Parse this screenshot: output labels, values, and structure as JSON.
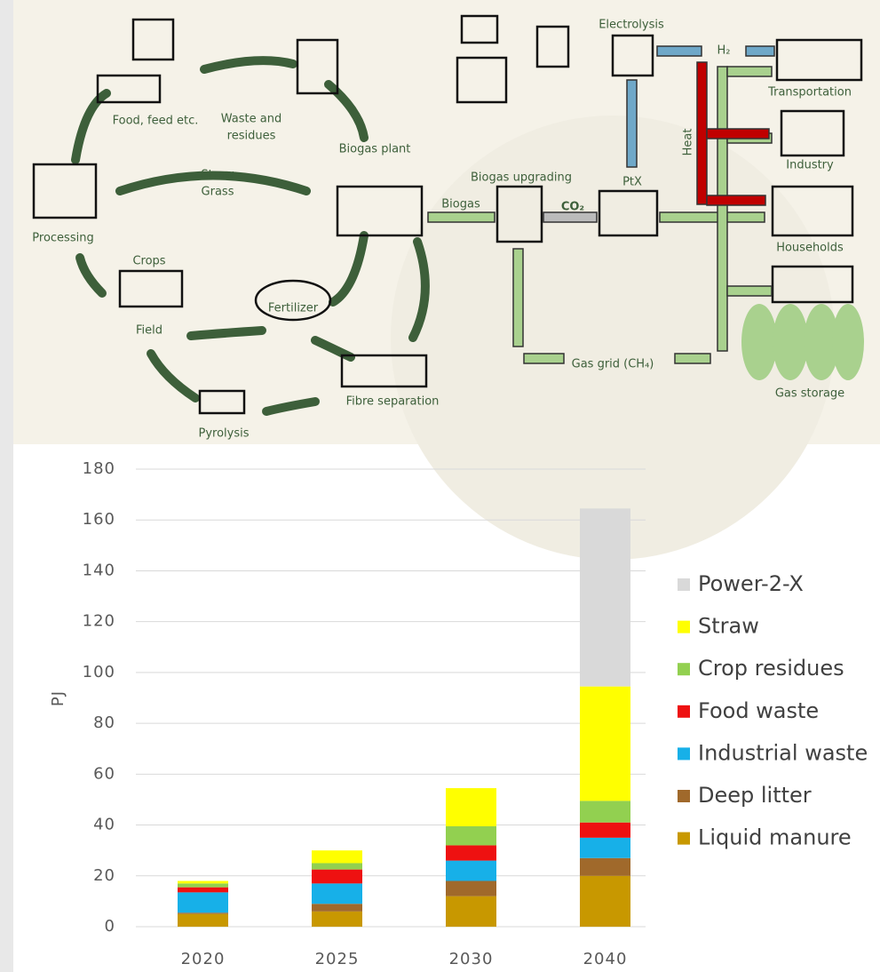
{
  "diagram": {
    "labels": [
      "Food, feed etc.",
      "Waste and",
      "residues",
      "Biogas plant",
      "Straw",
      "Grass",
      "Processing",
      "Crops",
      "Field",
      "Fertilizer",
      "Fibre separation",
      "Pyrolysis",
      "Biogas",
      "Biogas upgrading",
      "CO₂",
      "PtX",
      "Electrolysis",
      "H₂",
      "Heat",
      "Transportation",
      "Industry",
      "Households",
      "Gas grid (CH₄)",
      "Gas storage"
    ]
  },
  "chart_data": {
    "type": "stacked_bar",
    "ylabel": "PJ",
    "categories": [
      "2020",
      "2025",
      "2030",
      "2040"
    ],
    "series": [
      {
        "name": "Liquid manure",
        "color": "#c89800",
        "values": [
          5,
          6,
          12,
          20
        ]
      },
      {
        "name": "Deep litter",
        "color": "#a0692b",
        "values": [
          0.5,
          3,
          6,
          7
        ]
      },
      {
        "name": "Industrial waste",
        "color": "#17b0e8",
        "values": [
          8,
          8,
          8,
          8
        ]
      },
      {
        "name": "Food waste",
        "color": "#ee1111",
        "values": [
          2,
          5.5,
          6,
          6
        ]
      },
      {
        "name": "Crop residues",
        "color": "#92d050",
        "values": [
          1.5,
          2.5,
          7.5,
          8.5
        ]
      },
      {
        "name": "Straw",
        "color": "#ffff00",
        "values": [
          1,
          5,
          15,
          45
        ]
      },
      {
        "name": "Power-2-X",
        "color": "#d9d9d9",
        "values": [
          0,
          0,
          0,
          70
        ]
      }
    ],
    "ylim": [
      0,
      180
    ],
    "yticks": [
      0,
      20,
      40,
      60,
      80,
      100,
      120,
      140,
      160,
      180
    ],
    "grid": true,
    "legend": "right"
  }
}
